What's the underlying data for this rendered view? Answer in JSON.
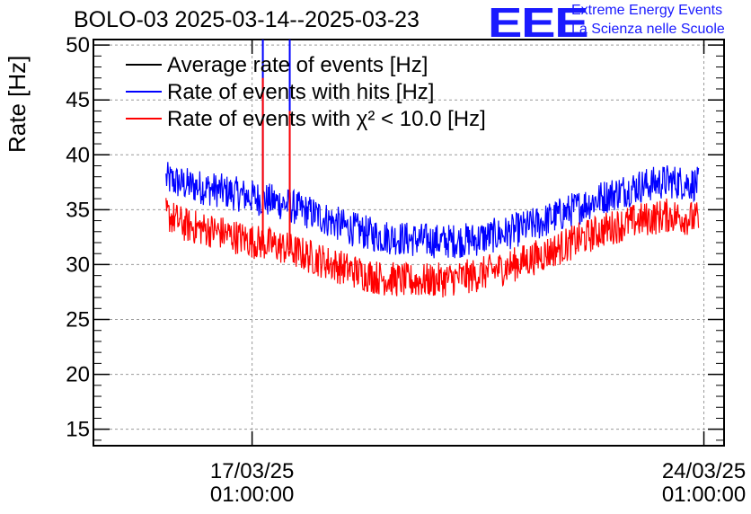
{
  "chart_data": {
    "type": "line",
    "title": "BOLO-03 2025-03-14--2025-03-23",
    "ylabel": "Rate [Hz]",
    "xlabel": "",
    "ylim": [
      13.5,
      50.5
    ],
    "yticks": [
      15,
      20,
      25,
      30,
      35,
      40,
      45,
      50
    ],
    "x_range_days": [
      "2025-03-14",
      "2025-03-23"
    ],
    "xticks": [
      {
        "x": "2025-03-17 01:00:00",
        "label_line1": "17/03/25",
        "label_line2": "01:00:00"
      },
      {
        "x": "2025-03-24 01:00:00",
        "label_line1": "24/03/25",
        "label_line2": "01:00:00"
      }
    ],
    "grid": true,
    "legend_position": "top-left",
    "series": [
      {
        "name": "Average rate of events [Hz]",
        "color": "#000000",
        "x": [],
        "y": []
      },
      {
        "name": "Rate of events with hits [Hz]",
        "color": "#0000ff",
        "x": [
          "2025-03-15 17:00",
          "2025-03-16 00:00",
          "2025-03-16 12:00",
          "2025-03-17 00:00",
          "2025-03-17 12:00",
          "2025-03-18 00:00",
          "2025-03-18 12:00",
          "2025-03-19 00:00",
          "2025-03-19 12:00",
          "2025-03-20 00:00",
          "2025-03-20 12:00",
          "2025-03-21 00:00",
          "2025-03-21 12:00",
          "2025-03-22 00:00",
          "2025-03-22 12:00",
          "2025-03-23 00:00",
          "2025-03-23 12:00",
          "2025-03-23 23:00"
        ],
        "y": [
          37.8,
          37.3,
          36.8,
          36.2,
          35.6,
          34.6,
          33.4,
          32.6,
          32.3,
          32.1,
          32.3,
          32.9,
          33.8,
          35.0,
          36.2,
          37.1,
          37.6,
          37.3
        ],
        "spikes": [
          {
            "x": "2025-03-17 05:00",
            "y": 50.5
          },
          {
            "x": "2025-03-17 15:00",
            "y": 50.5
          }
        ]
      },
      {
        "name": "Rate of events with χ² < 10.0 [Hz]",
        "color": "#ff0000",
        "x": [
          "2025-03-15 17:00",
          "2025-03-16 00:00",
          "2025-03-16 12:00",
          "2025-03-17 00:00",
          "2025-03-17 12:00",
          "2025-03-18 00:00",
          "2025-03-18 12:00",
          "2025-03-19 00:00",
          "2025-03-19 12:00",
          "2025-03-20 00:00",
          "2025-03-20 12:00",
          "2025-03-21 00:00",
          "2025-03-21 12:00",
          "2025-03-22 00:00",
          "2025-03-22 12:00",
          "2025-03-23 00:00",
          "2025-03-23 12:00",
          "2025-03-23 23:00"
        ],
        "y": [
          34.6,
          33.6,
          33.0,
          32.2,
          31.6,
          30.6,
          29.6,
          28.8,
          28.5,
          28.6,
          29.0,
          29.8,
          30.8,
          32.0,
          33.2,
          34.0,
          34.5,
          34.1
        ],
        "spikes": [
          {
            "x": "2025-03-17 05:00",
            "y": 47.0
          },
          {
            "x": "2025-03-17 15:00",
            "y": 44.0
          }
        ]
      }
    ]
  },
  "logo": {
    "mark": "EEE",
    "line1": "Extreme Energy Events",
    "line2": "La Scienza nelle Scuole",
    "color": "#1a1aff"
  }
}
